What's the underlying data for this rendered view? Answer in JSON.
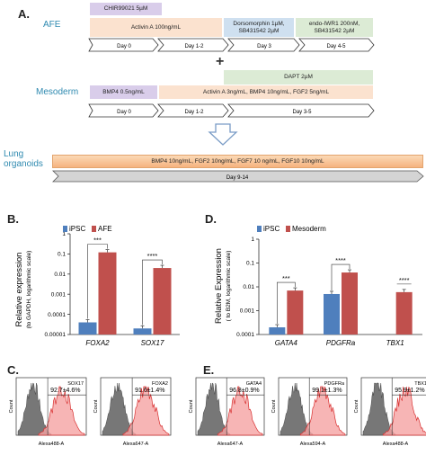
{
  "panelA": {
    "letter": "A.",
    "afe": {
      "label": "AFE",
      "boxes": [
        {
          "text": "CHIR99021 5µM",
          "color": "lav"
        },
        {
          "text": "Activin A 100ng/mL",
          "color": "peach"
        },
        {
          "text": "Dorsomorphin 1µM,\nSB431542 2µM",
          "color": "blue"
        },
        {
          "text": "endo-IWR1 200nM,\nSB431542 2µM",
          "color": "green"
        }
      ],
      "days": [
        "Day 0",
        "Day 1-2",
        "Day 3",
        "Day 4-5"
      ]
    },
    "plus": "+",
    "mesoderm": {
      "label": "Mesoderm",
      "boxes": [
        {
          "text": "DAPT 2µM",
          "color": "green"
        },
        {
          "text": "BMP4 0.5ng/mL",
          "color": "lav"
        },
        {
          "text": "Activin A 3ng/mL, BMP4 10ng/mL, FGF2 5ng/mL",
          "color": "peach"
        }
      ],
      "days": [
        "Day 0",
        "Day 1-2",
        "Day 3-5"
      ]
    },
    "lung": {
      "label_line1": "Lung",
      "label_line2": "organoids",
      "box": "BMP4 10ng/mL, FGF2 10ng/mL, FGF7 10 ng/mL, FGF10 10ng/mL",
      "day": "Day 9-14"
    }
  },
  "panelB": {
    "letter": "B.",
    "chart_data": {
      "type": "bar",
      "title": "",
      "ylabel": "Relative expression",
      "ylabel_sub": "(to GAPDH, logarithmic scale)",
      "log_scale": true,
      "ylim": [
        1e-05,
        1
      ],
      "yticks": [
        "1",
        "0.1",
        "0.01",
        "0.001",
        "0.0001",
        "0.00001"
      ],
      "categories": [
        "FOXA2",
        "SOX17"
      ],
      "series": [
        {
          "name": "iPSC",
          "color": "#4f7fbd",
          "values": [
            4e-05,
            2e-05
          ]
        },
        {
          "name": "AFE",
          "color": "#c0504d",
          "values": [
            0.12,
            0.02
          ]
        }
      ],
      "significance": [
        "***",
        "****"
      ]
    }
  },
  "panelD": {
    "letter": "D.",
    "chart_data": {
      "type": "bar",
      "title": "",
      "ylabel": "Relative Expression",
      "ylabel_sub": "( to B2M, logarithmic scale)",
      "log_scale": true,
      "ylim": [
        0.0001,
        1
      ],
      "yticks": [
        "1",
        "0.1",
        "0.01",
        "0.001",
        "0.0001"
      ],
      "categories": [
        "GATA4",
        "PDGFRa",
        "TBX1"
      ],
      "series": [
        {
          "name": "iPSC",
          "color": "#4f7fbd",
          "values": [
            0.0002,
            0.005,
            null
          ]
        },
        {
          "name": "Mesoderm",
          "color": "#c0504d",
          "values": [
            0.007,
            0.04,
            0.006
          ]
        }
      ],
      "significance": [
        "***",
        "****",
        "****"
      ]
    }
  },
  "panelC": {
    "letter": "C.",
    "plots": [
      {
        "marker": "SOX17",
        "percent": "92.7±4.6%",
        "xlabel": "Alexa488-A"
      },
      {
        "marker": "FOXA2",
        "percent": "91.6±1.4%",
        "xlabel": "Alexa647-A"
      }
    ],
    "ylabel": "Count"
  },
  "panelE": {
    "letter": "E.",
    "plots": [
      {
        "marker": "GATA4",
        "percent": "96.8±0.9%",
        "xlabel": "Alexa647-A"
      },
      {
        "marker": "PDGFRa",
        "percent": "99.1±1.3%",
        "xlabel": "Alexa594-A"
      },
      {
        "marker": "TBX1",
        "percent": "95.9±1.2%",
        "xlabel": "Alexa488-A"
      }
    ],
    "ylabel": "Count"
  }
}
